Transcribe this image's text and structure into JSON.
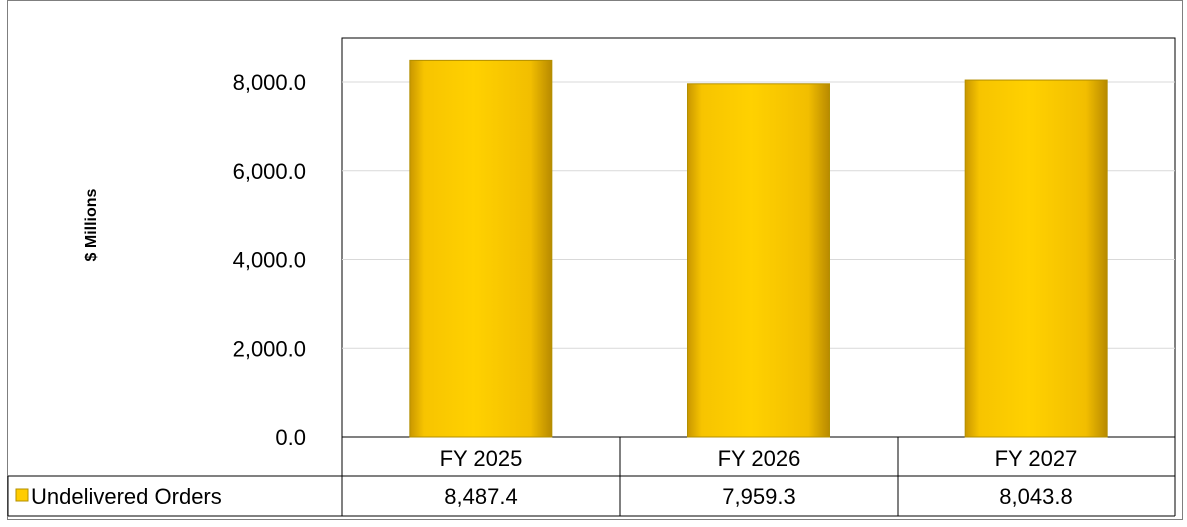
{
  "chart_data": {
    "type": "bar",
    "categories": [
      "FY 2025",
      "FY 2026",
      "FY 2027"
    ],
    "series": [
      {
        "name": "Undelivered Orders",
        "values": [
          8487.4,
          7959.3,
          8043.8
        ]
      }
    ],
    "value_labels": [
      "8,487.4",
      "7,959.3",
      "8,043.8"
    ],
    "ylabel": "$ Millions",
    "ylim": [
      0,
      8000
    ],
    "yticks": [
      0,
      2000,
      4000,
      6000,
      8000
    ],
    "ytick_labels": [
      "0.0",
      "2,000.0",
      "4,000.0",
      "6,000.0",
      "8,000.0"
    ],
    "grid": true,
    "legend": "data-table",
    "colors": {
      "bar": "#ffcc00",
      "bar_edge": "#b38f00",
      "legend_key": "#ffcc00"
    }
  }
}
